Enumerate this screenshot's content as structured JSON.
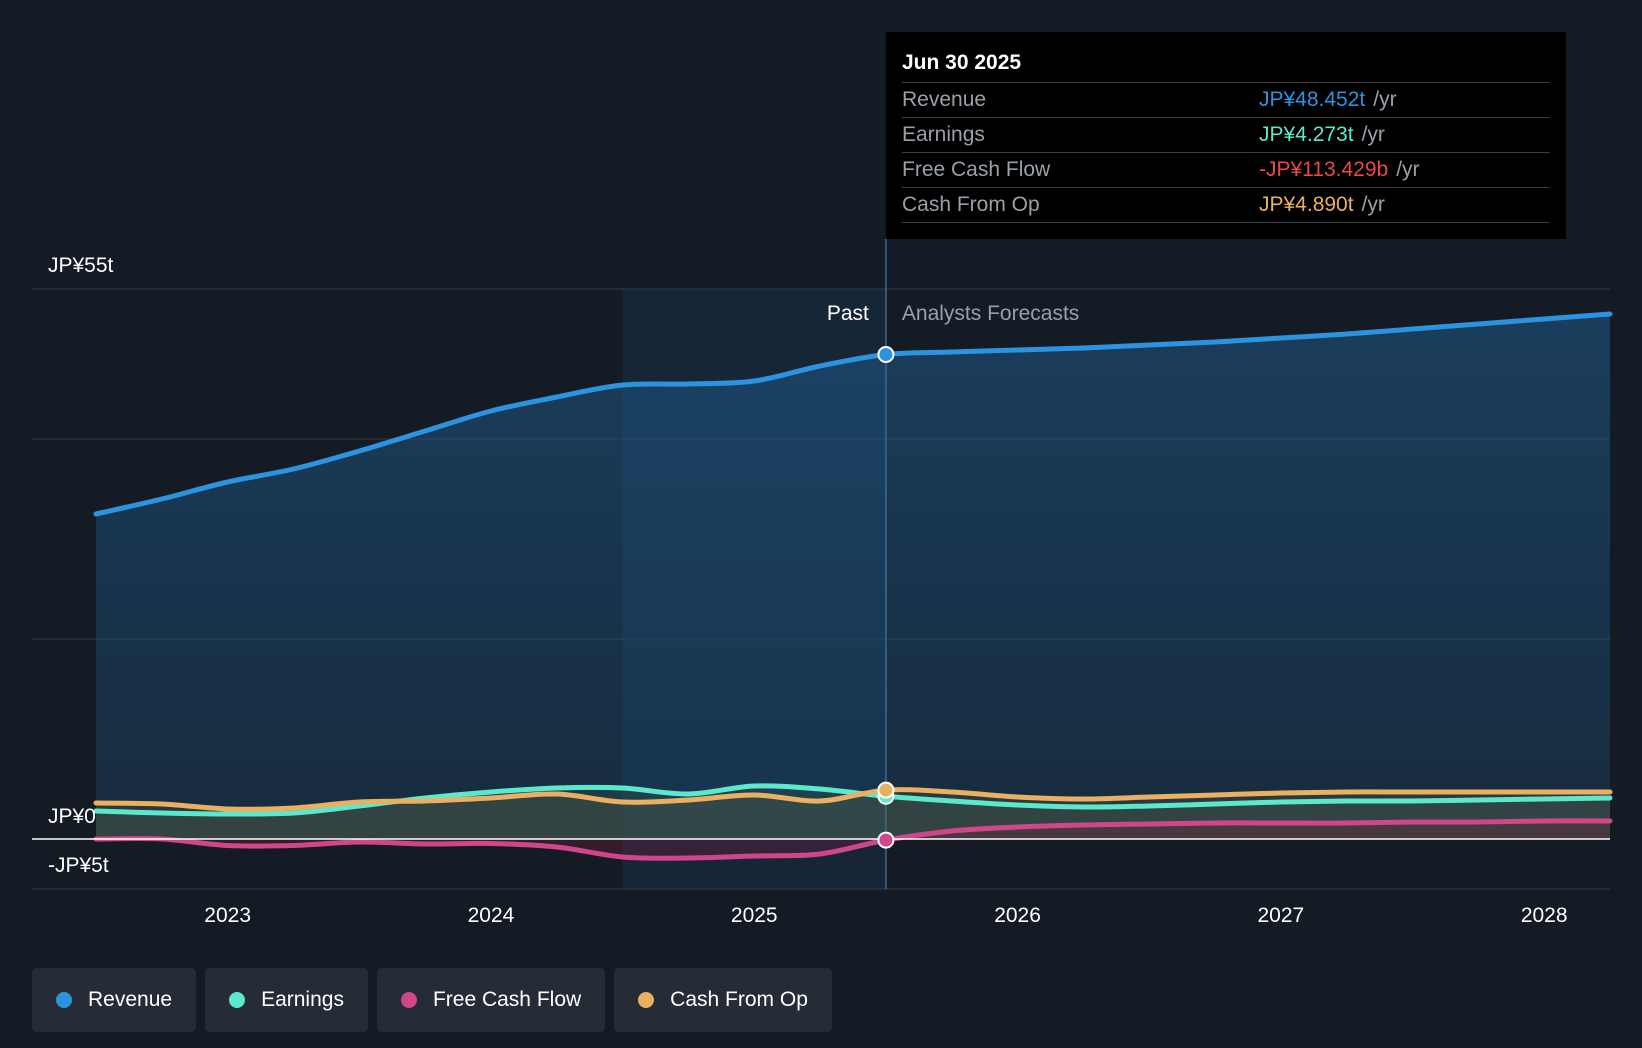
{
  "chart_data": {
    "type": "line",
    "title": "",
    "y_axis_labels": {
      "top": "JP¥55t",
      "zero": "JP¥0",
      "bottom": "-JP¥5t"
    },
    "ylim": [
      -5,
      55
    ],
    "xlim": [
      2022.5,
      2028.25
    ],
    "x_ticks": [
      "2023",
      "2024",
      "2025",
      "2026",
      "2027",
      "2028"
    ],
    "x_tick_values": [
      2023,
      2024,
      2025,
      2026,
      2027,
      2028
    ],
    "past_label": "Past",
    "forecast_label": "Analysts Forecasts",
    "past_region_start": 2024.5,
    "divider": 2025.5,
    "series": [
      {
        "name": "Revenue",
        "color": "#2b94e0",
        "x": [
          2022.5,
          2022.75,
          2023,
          2023.25,
          2023.5,
          2023.75,
          2024,
          2024.25,
          2024.5,
          2024.75,
          2025,
          2025.25,
          2025.5,
          2025.75,
          2026,
          2026.25,
          2026.5,
          2026.75,
          2027,
          2027.25,
          2027.5,
          2027.75,
          2028,
          2028.25
        ],
        "values": [
          32.5,
          34.0,
          35.7,
          37.0,
          38.8,
          40.8,
          42.8,
          44.2,
          45.4,
          45.5,
          45.8,
          47.3,
          48.452,
          48.7,
          48.9,
          49.1,
          49.4,
          49.7,
          50.1,
          50.5,
          51.0,
          51.5,
          52.0,
          52.5
        ]
      },
      {
        "name": "Earnings",
        "color": "#5ce8cc",
        "x": [
          2022.5,
          2022.75,
          2023,
          2023.25,
          2023.5,
          2023.75,
          2024,
          2024.25,
          2024.5,
          2024.75,
          2025,
          2025.25,
          2025.5,
          2025.75,
          2026,
          2026.25,
          2026.5,
          2026.75,
          2027,
          2027.25,
          2027.5,
          2027.75,
          2028,
          2028.25
        ],
        "values": [
          2.8,
          2.6,
          2.5,
          2.6,
          3.3,
          4.1,
          4.7,
          5.1,
          5.1,
          4.5,
          5.3,
          5.0,
          4.273,
          3.8,
          3.4,
          3.2,
          3.3,
          3.5,
          3.7,
          3.8,
          3.8,
          3.9,
          4.0,
          4.1
        ]
      },
      {
        "name": "Free Cash Flow",
        "color": "#d0468a",
        "x": [
          2022.5,
          2022.75,
          2023,
          2023.25,
          2023.5,
          2023.75,
          2024,
          2024.25,
          2024.5,
          2024.75,
          2025,
          2025.25,
          2025.5,
          2025.75,
          2026,
          2026.25,
          2026.5,
          2026.75,
          2027,
          2027.25,
          2027.5,
          2027.75,
          2028,
          2028.25
        ],
        "values": [
          0.0,
          0.0,
          -0.65,
          -0.65,
          -0.3,
          -0.5,
          -0.45,
          -0.8,
          -1.8,
          -1.9,
          -1.7,
          -1.5,
          -0.113,
          0.8,
          1.2,
          1.4,
          1.5,
          1.6,
          1.6,
          1.6,
          1.7,
          1.7,
          1.8,
          1.8
        ]
      },
      {
        "name": "Cash From Op",
        "color": "#e8b060",
        "x": [
          2022.5,
          2022.75,
          2023,
          2023.25,
          2023.5,
          2023.75,
          2024,
          2024.25,
          2024.5,
          2024.75,
          2025,
          2025.25,
          2025.5,
          2025.75,
          2026,
          2026.25,
          2026.5,
          2026.75,
          2027,
          2027.25,
          2027.5,
          2027.75,
          2028,
          2028.25
        ],
        "values": [
          3.6,
          3.5,
          3.0,
          3.1,
          3.7,
          3.8,
          4.1,
          4.5,
          3.7,
          3.9,
          4.4,
          3.8,
          4.89,
          4.7,
          4.2,
          4.0,
          4.2,
          4.4,
          4.6,
          4.7,
          4.7,
          4.7,
          4.7,
          4.7
        ]
      }
    ]
  },
  "tooltip": {
    "date": "Jun 30 2025",
    "rows": [
      {
        "label": "Revenue",
        "value": "JP¥48.452t",
        "unit": "/yr",
        "color": "#2b94e0"
      },
      {
        "label": "Earnings",
        "value": "JP¥4.273t",
        "unit": "/yr",
        "color": "#5ce8cc"
      },
      {
        "label": "Free Cash Flow",
        "value": "-JP¥113.429b",
        "unit": "/yr",
        "color": "#e84a4a"
      },
      {
        "label": "Cash From Op",
        "value": "JP¥4.890t",
        "unit": "/yr",
        "color": "#e8b060"
      }
    ]
  },
  "legend": [
    {
      "label": "Revenue",
      "color": "#2b94e0"
    },
    {
      "label": "Earnings",
      "color": "#5ce8cc"
    },
    {
      "label": "Free Cash Flow",
      "color": "#d0468a"
    },
    {
      "label": "Cash From Op",
      "color": "#e8b060"
    }
  ]
}
